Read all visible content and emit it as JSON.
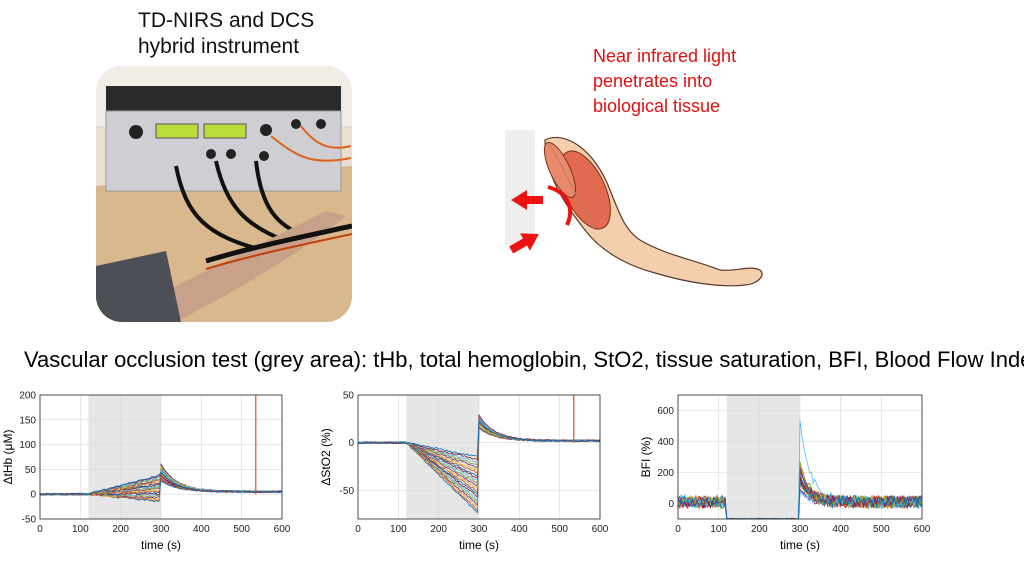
{
  "header": {
    "instrument_title_line1": "TD-NIRS and DCS",
    "instrument_title_line2": "hybrid instrument",
    "light_caption_line1": "Near infrared light",
    "light_caption_line2": "penetrates into",
    "light_caption_line3": "biological tissue"
  },
  "occlusion_caption": "Vascular occlusion test (grey area): tHb, total hemoglobin, StO2, tissue saturation, BFI, Blood Flow Index",
  "colors": {
    "caption_red": "#e01010",
    "occlusion_grey": "#e6e6e6",
    "arrow_red": "#ee1111"
  },
  "images": {
    "photo": "instrument-photo-with-forearm-sensors",
    "illustration": "arm-muscle-illustration-with-light-arrows"
  },
  "chart_data": [
    {
      "type": "line",
      "ylabel": "ΔtHb (μM)",
      "xlabel": "time (s)",
      "xlim": [
        0,
        600
      ],
      "ylim": [
        -50,
        200
      ],
      "xticks": [
        "0",
        "100",
        "200",
        "300",
        "400",
        "500",
        "600"
      ],
      "yticks": [
        "-50",
        "0",
        "50",
        "100",
        "150",
        "200"
      ],
      "occlusion_window": [
        120,
        300
      ],
      "grid": true,
      "series_summary": {
        "baseline": 0,
        "occlusion_end_values": [
          -15,
          40
        ],
        "post_release_peak": 65,
        "recovery_value": 5,
        "spike_time": 535
      }
    },
    {
      "type": "line",
      "ylabel": "ΔStO2 (%)",
      "xlabel": "time (s)",
      "xlim": [
        0,
        600
      ],
      "ylim": [
        -80,
        50
      ],
      "xticks": [
        "0",
        "100",
        "200",
        "300",
        "400",
        "500",
        "600"
      ],
      "yticks": [
        "-50",
        "0",
        "50"
      ],
      "occlusion_window": [
        120,
        300
      ],
      "grid": true,
      "series_summary": {
        "baseline": 0,
        "occlusion_end_values": [
          -75,
          -15
        ],
        "post_release_peak": 30,
        "recovery_value": 2,
        "spike_time": 535
      }
    },
    {
      "type": "line",
      "ylabel": "BFI (%)",
      "xlabel": "time (s)",
      "xlim": [
        0,
        600
      ],
      "ylim": [
        -100,
        700
      ],
      "xticks": [
        "0",
        "100",
        "200",
        "300",
        "400",
        "500",
        "600"
      ],
      "yticks": [
        "0",
        "200",
        "400",
        "600"
      ],
      "occlusion_window": [
        120,
        300
      ],
      "grid": true,
      "series_summary": {
        "baseline": 0,
        "occlusion_value": -100,
        "post_release_peak": 600,
        "recovery_value": 0
      }
    }
  ]
}
